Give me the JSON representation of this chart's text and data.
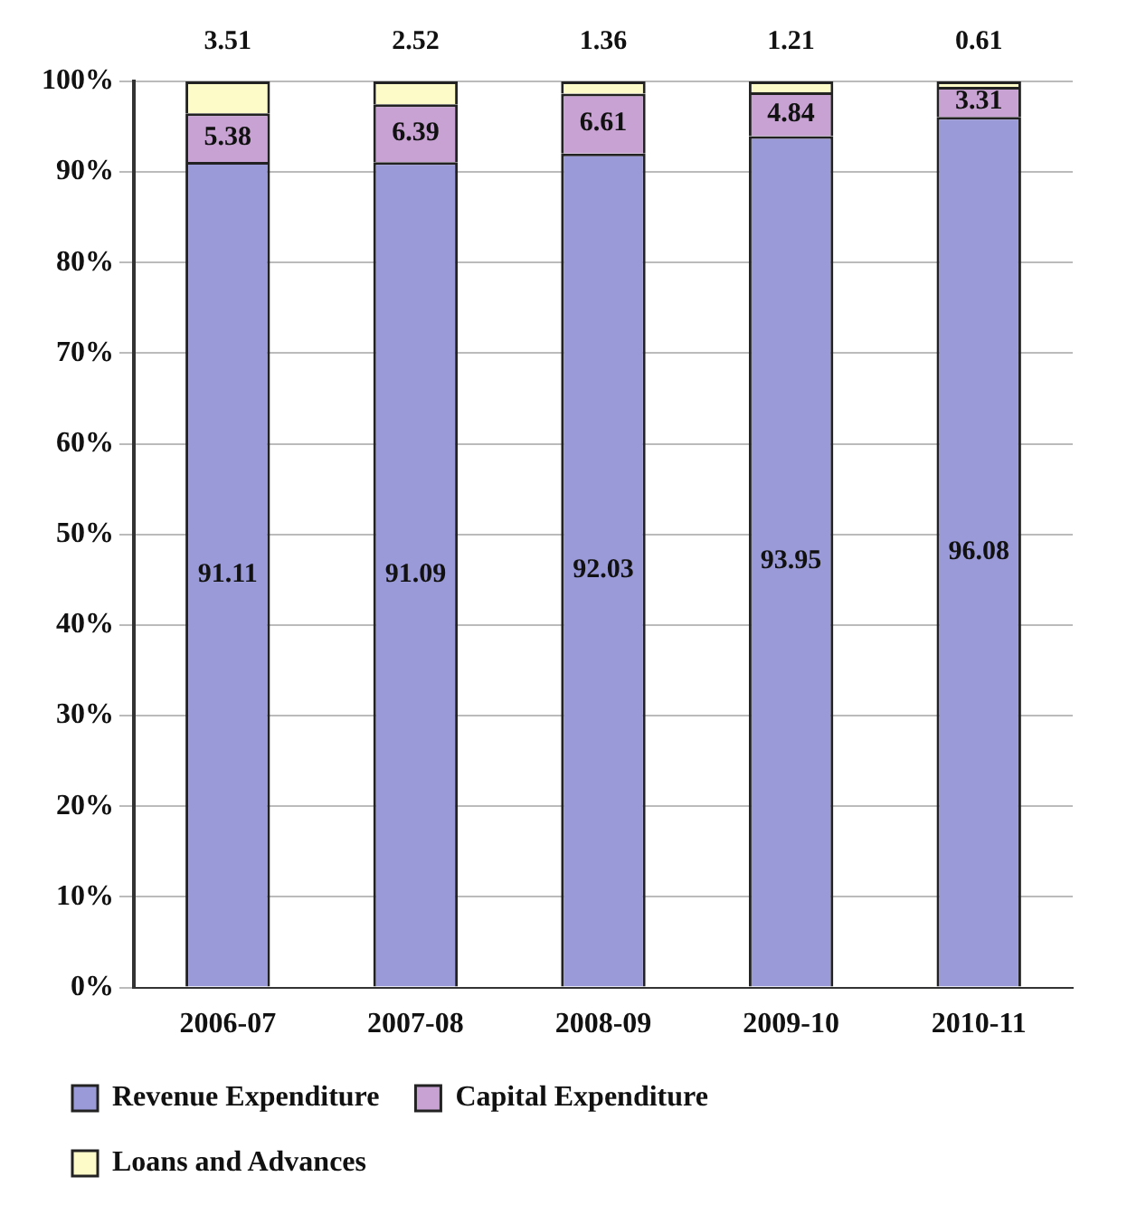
{
  "chart_data": {
    "type": "bar",
    "stacked": true,
    "categories": [
      "2006-07",
      "2007-08",
      "2008-09",
      "2009-10",
      "2010-11"
    ],
    "series": [
      {
        "name": "Revenue Expenditure",
        "color": "#9b9ad8",
        "values": [
          91.11,
          91.09,
          92.03,
          93.95,
          96.08
        ]
      },
      {
        "name": "Capital Expenditure",
        "color": "#c7a2d2",
        "values": [
          5.38,
          6.39,
          6.61,
          4.84,
          3.31
        ]
      },
      {
        "name": "Loans and Advances",
        "color": "#fdfbc8",
        "values": [
          3.51,
          2.52,
          1.36,
          1.21,
          0.61
        ]
      }
    ],
    "ylim": [
      0,
      100
    ],
    "yticks": [
      {
        "value": 0,
        "label": "0%"
      },
      {
        "value": 10,
        "label": "10%"
      },
      {
        "value": 20,
        "label": "20%"
      },
      {
        "value": 30,
        "label": "30%"
      },
      {
        "value": 40,
        "label": "40%"
      },
      {
        "value": 50,
        "label": "50%"
      },
      {
        "value": 60,
        "label": "60%"
      },
      {
        "value": 70,
        "label": "70%"
      },
      {
        "value": 80,
        "label": "80%"
      },
      {
        "value": 90,
        "label": "90%"
      },
      {
        "value": 100,
        "label": "100%"
      }
    ],
    "grid": "y",
    "legend": "bottom",
    "data_labels": true
  }
}
